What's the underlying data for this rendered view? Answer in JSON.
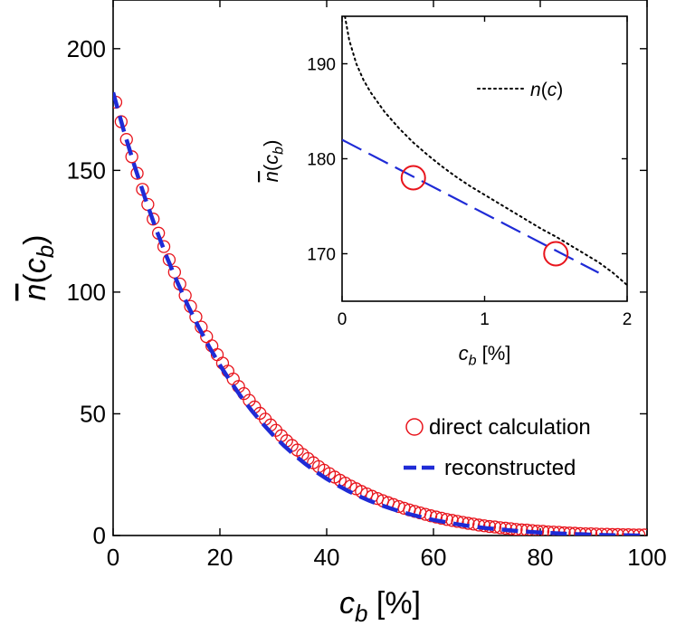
{
  "chart_data": [
    {
      "type": "scatter",
      "xlabel": {
        "base": "c",
        "sub": "b",
        "unit": " [%]"
      },
      "ylabel": {
        "bar": "n",
        "arg": "c",
        "sub": "b"
      },
      "xlim": [
        0,
        100
      ],
      "ylim": [
        0,
        220
      ],
      "xticks": [
        0,
        20,
        40,
        60,
        80,
        100
      ],
      "yticks": [
        0,
        50,
        100,
        150,
        200
      ],
      "xtick_labels": [
        "0",
        "20",
        "40",
        "60",
        "80",
        "100"
      ],
      "ytick_labels": [
        "0",
        "50",
        "100",
        "150",
        "200"
      ],
      "grid": false,
      "legend_position": "bottom-right",
      "series": [
        {
          "name": "direct calculation",
          "style": "open-circle",
          "color": "#e8141c",
          "x": [
            0.5,
            1.5,
            2.5,
            3.5,
            4.5,
            5.5,
            6.5,
            7.5,
            8.5,
            9.5,
            10.5,
            11.5,
            12.5,
            13.5,
            14.5,
            15.5,
            16.5,
            17.5,
            18.5,
            19.5,
            20.5,
            21.5,
            22.5,
            23.5,
            24.5,
            25.5,
            26.5,
            27.5,
            28.5,
            29.5,
            30.5,
            31.5,
            32.5,
            33.5,
            34.5,
            35.5,
            36.5,
            37.5,
            38.5,
            39.5,
            40.5,
            41.5,
            42.5,
            43.5,
            44.5,
            45.5,
            46.5,
            47.5,
            48.5,
            49.5,
            50.5,
            51.5,
            52.5,
            53.5,
            54.5,
            55.5,
            56.5,
            57.5,
            58.5,
            59.5,
            60.5,
            61.5,
            62.5,
            63.5,
            64.5,
            65.5,
            66.5,
            67.5,
            68.5,
            69.5,
            70.5,
            71.5,
            72.5,
            73.5,
            74.5,
            75.5,
            76.5,
            77.5,
            78.5,
            79.5,
            80.5,
            81.5,
            82.5,
            83.5,
            84.5,
            85.5,
            86.5,
            87.5,
            88.5,
            89.5,
            90.5,
            91.5,
            92.5,
            93.5,
            94.5,
            95.5,
            96.5,
            97.5,
            98.5,
            99.5
          ],
          "y": [
            178.0,
            170.0,
            162.7,
            155.6,
            148.8,
            142.2,
            136.0,
            130.0,
            124.2,
            118.7,
            113.3,
            108.2,
            103.3,
            98.6,
            94.1,
            89.8,
            85.6,
            81.7,
            77.9,
            74.3,
            70.8,
            67.5,
            64.3,
            61.2,
            58.3,
            55.5,
            52.8,
            50.2,
            47.8,
            45.4,
            43.2,
            41.0,
            38.9,
            37.0,
            35.1,
            33.3,
            31.6,
            29.9,
            28.3,
            26.8,
            25.4,
            24.0,
            22.7,
            21.5,
            20.3,
            19.2,
            18.1,
            17.1,
            16.1,
            15.2,
            14.3,
            13.5,
            12.7,
            11.9,
            11.2,
            10.5,
            9.9,
            9.3,
            8.7,
            8.1,
            7.6,
            7.1,
            6.6,
            6.2,
            5.8,
            5.4,
            5.0,
            4.7,
            4.3,
            4.0,
            3.7,
            3.5,
            3.2,
            3.0,
            2.8,
            2.5,
            2.3,
            2.2,
            2.0,
            1.8,
            1.7,
            1.5,
            1.4,
            1.3,
            1.1,
            1.0,
            0.9,
            0.8,
            0.7,
            0.7,
            0.6,
            0.5,
            0.5,
            0.4,
            0.4,
            0.3,
            0.3,
            0.2,
            0.2,
            0.2
          ]
        },
        {
          "name": "reconstructed",
          "style": "dashed-line",
          "color": "#1f2bd6",
          "x": [
            0,
            2,
            4,
            6,
            8,
            10,
            12,
            14,
            16,
            18,
            20,
            22,
            24,
            26,
            28,
            30,
            32,
            34,
            36,
            38,
            40,
            42,
            44,
            46,
            48,
            50,
            52,
            54,
            56,
            58,
            60,
            62,
            64,
            66,
            68,
            70,
            72,
            74,
            76,
            78,
            80,
            82,
            84,
            86,
            88,
            90,
            92,
            94,
            96,
            98,
            100
          ],
          "y": [
            182.0,
            166.3,
            151.9,
            138.5,
            126.1,
            114.7,
            104.2,
            94.5,
            85.7,
            77.5,
            70.0,
            63.2,
            56.9,
            51.2,
            46.0,
            41.2,
            36.9,
            33.0,
            29.4,
            26.2,
            23.3,
            20.7,
            18.3,
            16.2,
            14.3,
            12.6,
            11.1,
            9.7,
            8.5,
            7.4,
            6.4,
            5.6,
            4.8,
            4.1,
            3.5,
            3.0,
            2.6,
            2.2,
            1.8,
            1.5,
            1.2,
            1.0,
            0.8,
            0.6,
            0.5,
            0.3,
            0.2,
            0.1,
            0.1,
            0.0,
            0.0
          ]
        }
      ]
    },
    {
      "type": "line",
      "xlabel": {
        "base": "c",
        "sub": "b",
        "unit": " [%]"
      },
      "ylabel": {
        "bar": "n",
        "arg": "c",
        "sub": "b"
      },
      "xlim": [
        0,
        2
      ],
      "ylim": [
        165,
        195
      ],
      "xticks": [
        0,
        1,
        2
      ],
      "yticks": [
        170,
        180,
        190
      ],
      "xtick_labels": [
        "0",
        "1",
        "2"
      ],
      "ytick_labels": [
        "170",
        "180",
        "190"
      ],
      "grid": false,
      "legend_position": "top-right",
      "series": [
        {
          "name": "n(c)",
          "legend": {
            "base": "n",
            "arg": "c"
          },
          "style": "dotted-line",
          "color": "#000000",
          "x": [
            0.02,
            0.05,
            0.1,
            0.15,
            0.2,
            0.3,
            0.4,
            0.5,
            0.6,
            0.7,
            0.8,
            0.9,
            1.0,
            1.1,
            1.2,
            1.3,
            1.4,
            1.5,
            1.6,
            1.7,
            1.8,
            1.9,
            2.0
          ],
          "y": [
            195.0,
            192.5,
            190.0,
            188.3,
            187.0,
            184.9,
            183.2,
            181.7,
            180.4,
            179.2,
            178.1,
            177.1,
            176.2,
            175.3,
            174.4,
            173.5,
            172.6,
            171.8,
            170.9,
            170.0,
            169.1,
            168.0,
            166.7
          ]
        },
        {
          "name": "reconstructed",
          "style": "dashed-line",
          "color": "#1f2bd6",
          "x": [
            0,
            1.8
          ],
          "y": [
            182.0,
            168.0
          ]
        },
        {
          "name": "direct calculation",
          "style": "open-circle",
          "color": "#e8141c",
          "x": [
            0.5,
            1.5
          ],
          "y": [
            178.0,
            170.0
          ]
        }
      ]
    }
  ]
}
